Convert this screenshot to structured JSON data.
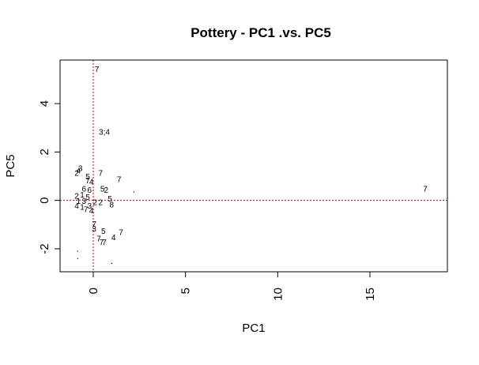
{
  "chart_data": {
    "type": "scatter",
    "title": "Pottery - PC1 .vs. PC5",
    "xlabel": "PC1",
    "ylabel": "PC5",
    "xlim": [
      -1.8,
      19.2
    ],
    "ylim": [
      -2.95,
      5.8
    ],
    "xticks": [
      0,
      5,
      10,
      15
    ],
    "yticks": [
      -2,
      0,
      2,
      4
    ],
    "xtick_labels": [
      "0",
      "5",
      "10",
      "15"
    ],
    "ytick_labels": [
      "-2",
      "0",
      "2",
      "4"
    ],
    "reference_lines": {
      "x": 0,
      "y": 0,
      "color": "#cc0000",
      "style": "dotted"
    },
    "grid": false,
    "points": [
      {
        "x": 0.2,
        "y": 5.4,
        "label": "7"
      },
      {
        "x": 0.6,
        "y": 2.8,
        "label": "3;4"
      },
      {
        "x": 18.0,
        "y": 0.45,
        "label": "7"
      },
      {
        "x": -0.9,
        "y": 1.1,
        "label": "2"
      },
      {
        "x": -0.8,
        "y": 1.2,
        "label": "4"
      },
      {
        "x": -0.7,
        "y": 1.3,
        "label": "3"
      },
      {
        "x": -0.3,
        "y": 0.95,
        "label": "5"
      },
      {
        "x": -0.3,
        "y": 0.8,
        "label": "7"
      },
      {
        "x": -0.1,
        "y": 0.75,
        "label": "4"
      },
      {
        "x": 0.4,
        "y": 1.1,
        "label": "7"
      },
      {
        "x": 1.4,
        "y": 0.85,
        "label": "7"
      },
      {
        "x": -0.5,
        "y": 0.45,
        "label": "6"
      },
      {
        "x": -0.2,
        "y": 0.4,
        "label": "6"
      },
      {
        "x": 0.5,
        "y": 0.45,
        "label": "5"
      },
      {
        "x": 0.7,
        "y": 0.4,
        "label": "2"
      },
      {
        "x": -0.9,
        "y": 0.15,
        "label": "2"
      },
      {
        "x": -0.6,
        "y": 0.2,
        "label": "1"
      },
      {
        "x": -0.3,
        "y": 0.1,
        "label": "5"
      },
      {
        "x": 0.9,
        "y": 0.05,
        "label": "5"
      },
      {
        "x": -0.8,
        "y": -0.05,
        "label": "1"
      },
      {
        "x": -0.5,
        "y": -0.05,
        "label": "3"
      },
      {
        "x": 0.1,
        "y": -0.1,
        "label": "2"
      },
      {
        "x": 0.4,
        "y": -0.1,
        "label": "2"
      },
      {
        "x": 1.0,
        "y": -0.2,
        "label": "8"
      },
      {
        "x": -0.9,
        "y": -0.25,
        "label": "4"
      },
      {
        "x": -0.6,
        "y": -0.3,
        "label": "1"
      },
      {
        "x": -0.2,
        "y": -0.25,
        "label": "3"
      },
      {
        "x": -0.4,
        "y": -0.4,
        "label": "7"
      },
      {
        "x": -0.1,
        "y": -0.45,
        "label": "4"
      },
      {
        "x": 0.05,
        "y": -1.0,
        "label": "7"
      },
      {
        "x": 0.05,
        "y": -1.2,
        "label": "3"
      },
      {
        "x": 0.55,
        "y": -1.3,
        "label": "5"
      },
      {
        "x": 1.5,
        "y": -1.35,
        "label": "7"
      },
      {
        "x": 1.1,
        "y": -1.55,
        "label": "4"
      },
      {
        "x": 0.3,
        "y": -1.6,
        "label": "7"
      },
      {
        "x": 0.45,
        "y": -1.75,
        "label": "7"
      },
      {
        "x": 0.6,
        "y": -1.75,
        "label": "7"
      },
      {
        "x": -0.85,
        "y": -2.1,
        "label": ""
      },
      {
        "x": -0.85,
        "y": -2.4,
        "label": ""
      },
      {
        "x": 2.2,
        "y": 0.35,
        "label": ""
      },
      {
        "x": 1.0,
        "y": -2.6,
        "label": ""
      }
    ]
  }
}
